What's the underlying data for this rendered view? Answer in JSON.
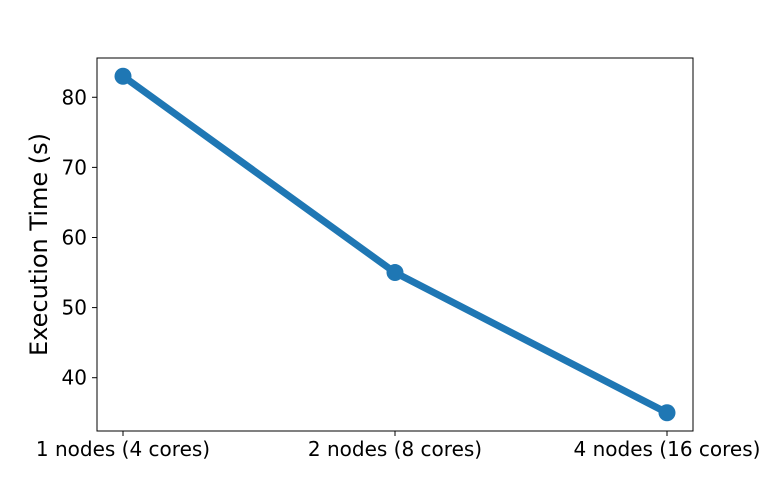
{
  "chart_data": {
    "type": "line",
    "title": "",
    "xlabel": "",
    "ylabel": "Execution Time (s)",
    "categories": [
      "1 nodes (4 cores)",
      "2 nodes (8 cores)",
      "4 nodes (16 cores)"
    ],
    "series": [
      {
        "values": [
          83,
          55,
          35
        ],
        "color": "#1f77b4"
      }
    ],
    "ylim": [
      32.4,
      85.6
    ],
    "yticks": [
      40,
      50,
      60,
      70,
      80
    ],
    "grid": false,
    "legend": "none"
  }
}
